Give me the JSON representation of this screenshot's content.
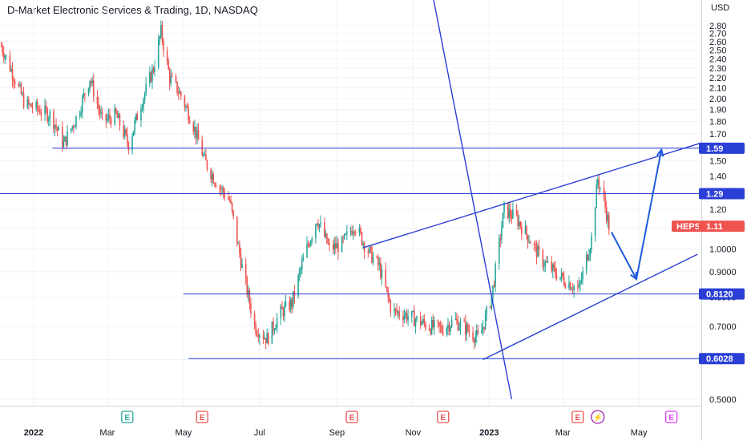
{
  "chart_data": {
    "type": "candlestick",
    "title": "D-Market Electronic Services & Trading, 1D, NASDAQ",
    "currency_label": "USD",
    "ticker": "HEPS",
    "last_price": "1.11",
    "y_scale": "log",
    "ylim": [
      0.485,
      3.15
    ],
    "xlim": [
      "2021-12-05",
      "2023-06-20"
    ],
    "y_ticks": [
      "2.80",
      "2.70",
      "2.60",
      "2.50",
      "2.40",
      "2.30",
      "2.20",
      "2.10",
      "2.00",
      "1.90",
      "1.80",
      "1.70",
      "1.60",
      "1.50",
      "1.40",
      "1.30",
      "1.20",
      "1.10",
      "1.0000",
      "0.9000",
      "0.8000",
      "0.7000",
      "0.6000",
      "0.5000"
    ],
    "x_ticks": [
      {
        "label": "2022",
        "date": "2022-01-01"
      },
      {
        "label": "Mar",
        "date": "2022-03-01"
      },
      {
        "label": "May",
        "date": "2022-05-01"
      },
      {
        "label": "Jul",
        "date": "2022-07-01"
      },
      {
        "label": "Sep",
        "date": "2022-09-01"
      },
      {
        "label": "Nov",
        "date": "2022-11-01"
      },
      {
        "label": "2023",
        "date": "2023-01-01"
      },
      {
        "label": "Mar",
        "date": "2023-03-01"
      },
      {
        "label": "May",
        "date": "2023-05-01"
      }
    ],
    "price_path": [
      [
        "2021-12-06",
        2.55
      ],
      [
        "2021-12-15",
        2.25
      ],
      [
        "2021-12-25",
        1.95
      ],
      [
        "2022-01-05",
        1.9
      ],
      [
        "2022-01-15",
        1.85
      ],
      [
        "2022-01-25",
        1.62
      ],
      [
        "2022-02-05",
        1.85
      ],
      [
        "2022-02-15",
        2.2
      ],
      [
        "2022-02-25",
        1.8
      ],
      [
        "2022-03-08",
        1.85
      ],
      [
        "2022-03-18",
        1.62
      ],
      [
        "2022-03-28",
        1.95
      ],
      [
        "2022-04-07",
        2.3
      ],
      [
        "2022-04-13",
        2.72
      ],
      [
        "2022-04-20",
        2.2
      ],
      [
        "2022-04-28",
        2.05
      ],
      [
        "2022-05-08",
        1.8
      ],
      [
        "2022-05-18",
        1.5
      ],
      [
        "2022-05-28",
        1.35
      ],
      [
        "2022-06-07",
        1.25
      ],
      [
        "2022-06-17",
        0.92
      ],
      [
        "2022-06-27",
        0.7
      ],
      [
        "2022-07-07",
        0.66
      ],
      [
        "2022-07-17",
        0.74
      ],
      [
        "2022-07-27",
        0.78
      ],
      [
        "2022-08-06",
        0.97
      ],
      [
        "2022-08-16",
        1.15
      ],
      [
        "2022-08-26",
        1.0
      ],
      [
        "2022-09-05",
        1.02
      ],
      [
        "2022-09-15",
        1.12
      ],
      [
        "2022-09-25",
        1.0
      ],
      [
        "2022-10-05",
        0.92
      ],
      [
        "2022-10-15",
        0.75
      ],
      [
        "2022-10-25",
        0.74
      ],
      [
        "2022-11-04",
        0.72
      ],
      [
        "2022-11-14",
        0.7
      ],
      [
        "2022-11-24",
        0.69
      ],
      [
        "2022-12-04",
        0.72
      ],
      [
        "2022-12-14",
        0.69
      ],
      [
        "2022-12-24",
        0.66
      ],
      [
        "2023-01-03",
        0.8
      ],
      [
        "2023-01-13",
        1.2
      ],
      [
        "2023-01-23",
        1.15
      ],
      [
        "2023-02-02",
        1.05
      ],
      [
        "2023-02-12",
        0.95
      ],
      [
        "2023-02-22",
        0.9
      ],
      [
        "2023-03-04",
        0.86
      ],
      [
        "2023-03-14",
        0.83
      ],
      [
        "2023-03-24",
        1.05
      ],
      [
        "2023-03-29",
        1.38
      ],
      [
        "2023-04-03",
        1.25
      ],
      [
        "2023-04-07",
        1.11
      ]
    ],
    "horizontal_levels": [
      {
        "value": 1.59,
        "label": "1.59",
        "from": "2022-01-16"
      },
      {
        "value": 1.29,
        "label": "1.29",
        "from": "2021-12-05"
      },
      {
        "value": 0.812,
        "label": "0.8120",
        "from": "2022-05-01"
      },
      {
        "value": 0.6028,
        "label": "0.6028",
        "from": "2022-05-05"
      }
    ],
    "trend_lines": [
      {
        "x1": "2022-09-22",
        "y1": 1.005,
        "x2": "2023-06-20",
        "y2": 1.63
      },
      {
        "x1": "2022-12-27",
        "y1": 0.6,
        "x2": "2023-06-17",
        "y2": 0.975
      },
      {
        "x1": "2022-11-17",
        "y1": 3.2,
        "x2": "2023-01-19",
        "y2": 0.5
      }
    ],
    "projection_arrows": [
      {
        "x1": "2023-04-09",
        "y1": 1.08,
        "x2": "2023-04-29",
        "y2": 0.87
      },
      {
        "x1": "2023-04-29",
        "y1": 0.87,
        "x2": "2023-05-19",
        "y2": 1.58
      }
    ],
    "events": [
      {
        "label": "E",
        "date": "2022-03-17",
        "color": "#26a69a"
      },
      {
        "label": "E",
        "date": "2022-05-16",
        "color": "#ef5350"
      },
      {
        "label": "E",
        "date": "2022-09-13",
        "color": "#ef5350"
      },
      {
        "label": "E",
        "date": "2022-11-25",
        "color": "#ef5350"
      },
      {
        "label": "E",
        "date": "2023-03-13",
        "color": "#ef5350"
      },
      {
        "label": "⚡",
        "date": "2023-03-29",
        "color": "#9c27b0"
      },
      {
        "label": "E",
        "date": "2023-05-27",
        "color": "#e040fb"
      }
    ],
    "colors": {
      "up": "#26a69a",
      "down": "#ef5350",
      "drawing": "#2a3fd6",
      "ticker_badge": "#ef5350",
      "level_badge": "#2a3fd6",
      "grid": "#f0f3fa",
      "axis_text": "#131722"
    }
  }
}
